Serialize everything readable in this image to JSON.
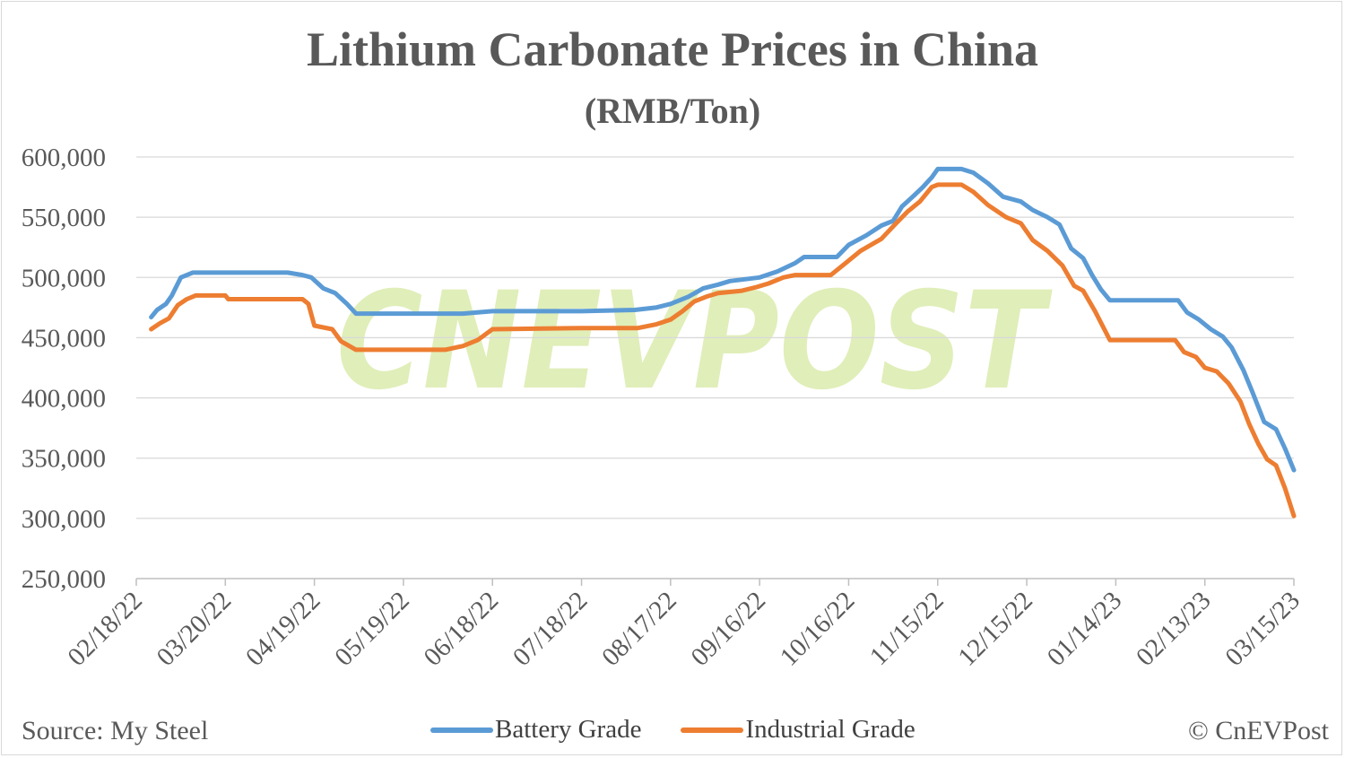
{
  "colors": {
    "battery": "#5b9bd5",
    "industrial": "#ed7d31",
    "grid": "#d9d9d9",
    "text": "#595959",
    "watermark": "#d9eaa8"
  },
  "watermark_text": "CNEVPOST",
  "footer": {
    "source": "Source: My Steel",
    "credit": "© CnEVPost"
  },
  "chart_data": {
    "type": "line",
    "title": "Lithium Carbonate Prices in China",
    "subtitle": "(RMB/Ton)",
    "ylim": [
      250000,
      600000
    ],
    "yticks": [
      250000,
      300000,
      350000,
      400000,
      450000,
      500000,
      550000,
      600000
    ],
    "ytick_labels": [
      "250,000",
      "300,000",
      "350,000",
      "400,000",
      "450,000",
      "500,000",
      "550,000",
      "600,000"
    ],
    "xlim": [
      "2022-02-18",
      "2023-03-15"
    ],
    "xtick_labels": [
      "02/18/22",
      "03/20/22",
      "04/19/22",
      "05/19/22",
      "06/18/22",
      "07/18/22",
      "08/17/22",
      "09/16/22",
      "10/16/22",
      "11/15/22",
      "12/15/22",
      "01/14/23",
      "02/13/23",
      "03/15/23"
    ],
    "grid": true,
    "legend_position": "bottom",
    "series": [
      {
        "name": "Battery Grade",
        "color": "#5b9bd5",
        "points": [
          [
            "2022-02-23",
            467000
          ],
          [
            "2022-02-25",
            473000
          ],
          [
            "2022-02-28",
            478000
          ],
          [
            "2022-03-02",
            485000
          ],
          [
            "2022-03-05",
            500000
          ],
          [
            "2022-03-09",
            504000
          ],
          [
            "2022-03-20",
            504000
          ],
          [
            "2022-04-10",
            504000
          ],
          [
            "2022-04-15",
            502000
          ],
          [
            "2022-04-18",
            500000
          ],
          [
            "2022-04-22",
            491000
          ],
          [
            "2022-04-26",
            487000
          ],
          [
            "2022-04-30",
            478000
          ],
          [
            "2022-05-03",
            470000
          ],
          [
            "2022-05-19",
            470000
          ],
          [
            "2022-06-08",
            470000
          ],
          [
            "2022-06-18",
            472000
          ],
          [
            "2022-07-18",
            472000
          ],
          [
            "2022-08-05",
            473000
          ],
          [
            "2022-08-12",
            475000
          ],
          [
            "2022-08-17",
            478000
          ],
          [
            "2022-08-23",
            484000
          ],
          [
            "2022-08-28",
            491000
          ],
          [
            "2022-09-02",
            494000
          ],
          [
            "2022-09-06",
            497000
          ],
          [
            "2022-09-16",
            500000
          ],
          [
            "2022-09-22",
            505000
          ],
          [
            "2022-09-28",
            512000
          ],
          [
            "2022-10-01",
            517000
          ],
          [
            "2022-10-12",
            517000
          ],
          [
            "2022-10-16",
            527000
          ],
          [
            "2022-10-22",
            535000
          ],
          [
            "2022-10-27",
            543000
          ],
          [
            "2022-10-31",
            547000
          ],
          [
            "2022-11-03",
            559000
          ],
          [
            "2022-11-07",
            568000
          ],
          [
            "2022-11-10",
            575000
          ],
          [
            "2022-11-13",
            583000
          ],
          [
            "2022-11-15",
            590000
          ],
          [
            "2022-11-23",
            590000
          ],
          [
            "2022-11-27",
            587000
          ],
          [
            "2022-12-02",
            578000
          ],
          [
            "2022-12-07",
            567000
          ],
          [
            "2022-12-13",
            563000
          ],
          [
            "2022-12-17",
            556000
          ],
          [
            "2022-12-22",
            550000
          ],
          [
            "2022-12-26",
            544000
          ],
          [
            "2022-12-30",
            524000
          ],
          [
            "2023-01-03",
            516000
          ],
          [
            "2023-01-06",
            502000
          ],
          [
            "2023-01-09",
            490000
          ],
          [
            "2023-01-12",
            481000
          ],
          [
            "2023-01-14",
            481000
          ],
          [
            "2023-02-04",
            481000
          ],
          [
            "2023-02-07",
            471000
          ],
          [
            "2023-02-11",
            465000
          ],
          [
            "2023-02-15",
            457000
          ],
          [
            "2023-02-19",
            451000
          ],
          [
            "2023-02-22",
            442000
          ],
          [
            "2023-02-26",
            423000
          ],
          [
            "2023-03-01",
            405000
          ],
          [
            "2023-03-05",
            380000
          ],
          [
            "2023-03-09",
            374000
          ],
          [
            "2023-03-12",
            358000
          ],
          [
            "2023-03-15",
            340000
          ]
        ]
      },
      {
        "name": "Industrial Grade",
        "color": "#ed7d31",
        "points": [
          [
            "2022-02-23",
            457000
          ],
          [
            "2022-02-26",
            462000
          ],
          [
            "2022-03-01",
            466000
          ],
          [
            "2022-03-04",
            477000
          ],
          [
            "2022-03-07",
            482000
          ],
          [
            "2022-03-10",
            485000
          ],
          [
            "2022-03-20",
            485000
          ],
          [
            "2022-03-21",
            482000
          ],
          [
            "2022-04-15",
            482000
          ],
          [
            "2022-04-17",
            478000
          ],
          [
            "2022-04-19",
            460000
          ],
          [
            "2022-04-25",
            457000
          ],
          [
            "2022-04-28",
            447000
          ],
          [
            "2022-05-03",
            440000
          ],
          [
            "2022-05-19",
            440000
          ],
          [
            "2022-06-02",
            440000
          ],
          [
            "2022-06-08",
            443000
          ],
          [
            "2022-06-13",
            448000
          ],
          [
            "2022-06-18",
            457000
          ],
          [
            "2022-07-18",
            458000
          ],
          [
            "2022-08-06",
            458000
          ],
          [
            "2022-08-12",
            461000
          ],
          [
            "2022-08-17",
            465000
          ],
          [
            "2022-08-21",
            472000
          ],
          [
            "2022-08-25",
            480000
          ],
          [
            "2022-08-29",
            484000
          ],
          [
            "2022-09-02",
            487000
          ],
          [
            "2022-09-10",
            489000
          ],
          [
            "2022-09-15",
            492000
          ],
          [
            "2022-09-19",
            495000
          ],
          [
            "2022-09-24",
            500000
          ],
          [
            "2022-09-28",
            502000
          ],
          [
            "2022-10-10",
            502000
          ],
          [
            "2022-10-15",
            512000
          ],
          [
            "2022-10-20",
            522000
          ],
          [
            "2022-10-27",
            532000
          ],
          [
            "2022-11-01",
            545000
          ],
          [
            "2022-11-05",
            555000
          ],
          [
            "2022-11-09",
            563000
          ],
          [
            "2022-11-13",
            575000
          ],
          [
            "2022-11-15",
            577000
          ],
          [
            "2022-11-23",
            577000
          ],
          [
            "2022-11-27",
            571000
          ],
          [
            "2022-12-02",
            560000
          ],
          [
            "2022-12-08",
            550000
          ],
          [
            "2022-12-13",
            545000
          ],
          [
            "2022-12-17",
            531000
          ],
          [
            "2022-12-22",
            522000
          ],
          [
            "2022-12-27",
            510000
          ],
          [
            "2022-12-31",
            493000
          ],
          [
            "2023-01-03",
            489000
          ],
          [
            "2023-01-07",
            472000
          ],
          [
            "2023-01-12",
            448000
          ],
          [
            "2023-01-14",
            448000
          ],
          [
            "2023-02-03",
            448000
          ],
          [
            "2023-02-06",
            438000
          ],
          [
            "2023-02-10",
            434000
          ],
          [
            "2023-02-13",
            425000
          ],
          [
            "2023-02-17",
            422000
          ],
          [
            "2023-02-21",
            412000
          ],
          [
            "2023-02-25",
            397000
          ],
          [
            "2023-02-28",
            378000
          ],
          [
            "2023-03-03",
            362000
          ],
          [
            "2023-03-06",
            349000
          ],
          [
            "2023-03-09",
            344000
          ],
          [
            "2023-03-12",
            325000
          ],
          [
            "2023-03-15",
            302000
          ]
        ]
      }
    ]
  }
}
